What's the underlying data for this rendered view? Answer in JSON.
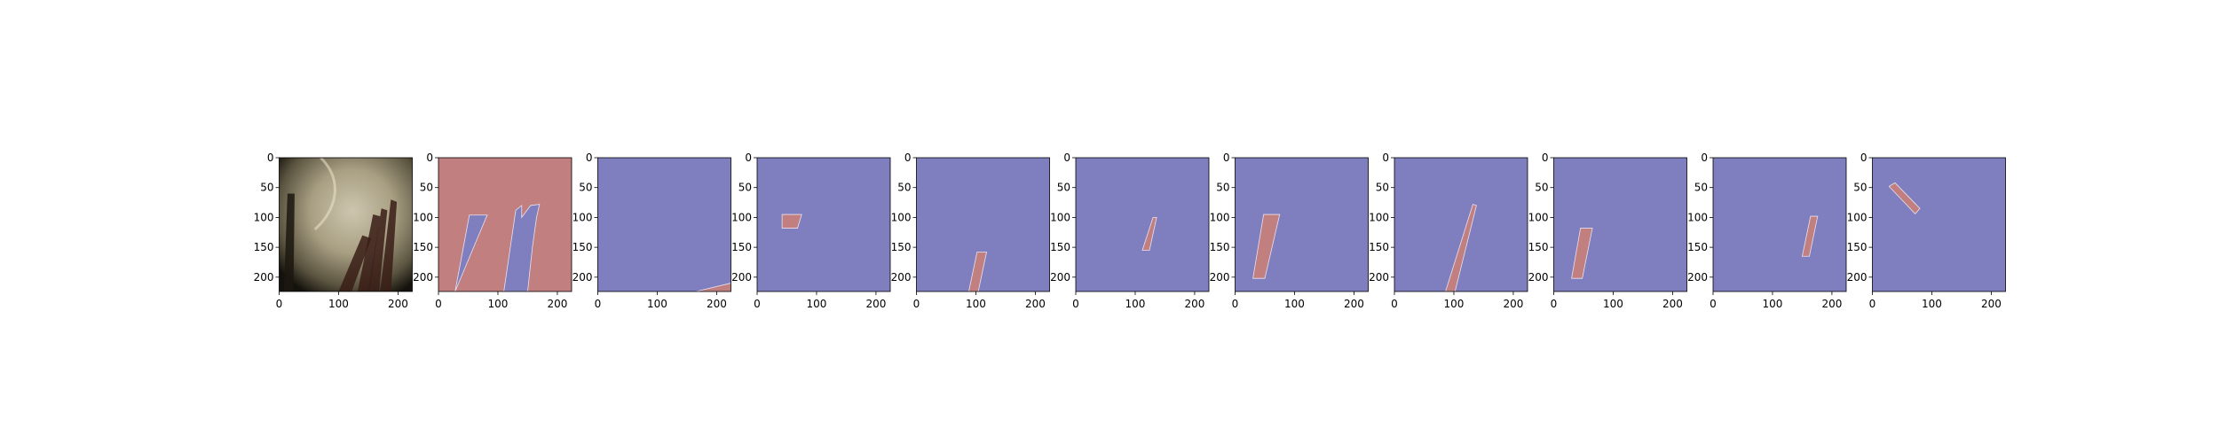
{
  "figure": {
    "background": "#ffffff",
    "panel_count": 11,
    "mask_colors": {
      "background": "#7f7fbf",
      "foreground": "#c27f7f"
    }
  },
  "chart_data": [
    {
      "type": "heatmap",
      "panel": 1,
      "content": "photo",
      "xlim": [
        0,
        224
      ],
      "ylim": [
        224,
        0
      ],
      "xticks": [
        0,
        100,
        200
      ],
      "yticks": [
        0,
        50,
        100,
        150,
        200
      ],
      "xtick_labels": [
        "0",
        "100",
        "200"
      ],
      "ytick_labels": [
        "0",
        "50",
        "100",
        "150",
        "200"
      ]
    },
    {
      "type": "heatmap",
      "panel": 2,
      "content": "mask",
      "background_class": "foreground",
      "regions": [
        [
          [
            28,
            225
          ],
          [
            52,
            96
          ],
          [
            82,
            96
          ],
          [
            60,
            148
          ],
          [
            28,
            225
          ]
        ],
        [
          [
            110,
            225
          ],
          [
            130,
            88
          ],
          [
            140,
            80
          ],
          [
            140,
            100
          ],
          [
            155,
            80
          ],
          [
            170,
            78
          ],
          [
            165,
            100
          ],
          [
            158,
            150
          ],
          [
            150,
            225
          ]
        ]
      ],
      "xlim": [
        0,
        224
      ],
      "ylim": [
        224,
        0
      ],
      "xticks": [
        0,
        100,
        200
      ],
      "yticks": [
        0,
        50,
        100,
        150,
        200
      ],
      "xtick_labels": [
        "0",
        "100",
        "200"
      ],
      "ytick_labels": [
        "0",
        "50",
        "100",
        "150",
        "200"
      ]
    },
    {
      "type": "heatmap",
      "panel": 3,
      "content": "mask",
      "regions": [
        [
          [
            165,
            225
          ],
          [
            224,
            210
          ],
          [
            224,
            225
          ]
        ]
      ],
      "xlim": [
        0,
        224
      ],
      "ylim": [
        224,
        0
      ],
      "xticks": [
        0,
        100,
        200
      ],
      "yticks": [
        0,
        50,
        100,
        150,
        200
      ],
      "xtick_labels": [
        "0",
        "100",
        "200"
      ],
      "ytick_labels": [
        "0",
        "50",
        "100",
        "150",
        "200"
      ]
    },
    {
      "type": "heatmap",
      "panel": 4,
      "content": "mask",
      "regions": [
        [
          [
            42,
            95
          ],
          [
            75,
            95
          ],
          [
            68,
            118
          ],
          [
            42,
            118
          ]
        ]
      ],
      "xlim": [
        0,
        224
      ],
      "ylim": [
        224,
        0
      ],
      "xticks": [
        0,
        100,
        200
      ],
      "yticks": [
        0,
        50,
        100,
        150,
        200
      ],
      "xtick_labels": [
        "0",
        "100",
        "200"
      ],
      "ytick_labels": [
        "0",
        "50",
        "100",
        "150",
        "200"
      ]
    },
    {
      "type": "heatmap",
      "panel": 5,
      "content": "mask",
      "regions": [
        [
          [
            88,
            225
          ],
          [
            102,
            158
          ],
          [
            118,
            158
          ],
          [
            104,
            225
          ]
        ]
      ],
      "xlim": [
        0,
        224
      ],
      "ylim": [
        224,
        0
      ],
      "xticks": [
        0,
        100,
        200
      ],
      "yticks": [
        0,
        50,
        100,
        150,
        200
      ],
      "xtick_labels": [
        "0",
        "100",
        "200"
      ],
      "ytick_labels": [
        "0",
        "50",
        "100",
        "150",
        "200"
      ]
    },
    {
      "type": "heatmap",
      "panel": 6,
      "content": "mask",
      "regions": [
        [
          [
            112,
            155
          ],
          [
            130,
            100
          ],
          [
            136,
            100
          ],
          [
            124,
            155
          ]
        ]
      ],
      "xlim": [
        0,
        224
      ],
      "ylim": [
        224,
        0
      ],
      "xticks": [
        0,
        100,
        200
      ],
      "yticks": [
        0,
        50,
        100,
        150,
        200
      ],
      "xtick_labels": [
        "0",
        "100",
        "200"
      ],
      "ytick_labels": [
        "0",
        "50",
        "100",
        "150",
        "200"
      ]
    },
    {
      "type": "heatmap",
      "panel": 7,
      "content": "mask",
      "regions": [
        [
          [
            30,
            202
          ],
          [
            48,
            95
          ],
          [
            75,
            95
          ],
          [
            50,
            202
          ]
        ]
      ],
      "xlim": [
        0,
        224
      ],
      "ylim": [
        224,
        0
      ],
      "xticks": [
        0,
        100,
        200
      ],
      "yticks": [
        0,
        50,
        100,
        150,
        200
      ],
      "xtick_labels": [
        "0",
        "100",
        "200"
      ],
      "ytick_labels": [
        "0",
        "50",
        "100",
        "150",
        "200"
      ]
    },
    {
      "type": "heatmap",
      "panel": 8,
      "content": "mask",
      "regions": [
        [
          [
            86,
            225
          ],
          [
            132,
            78
          ],
          [
            138,
            80
          ],
          [
            102,
            225
          ]
        ]
      ],
      "xlim": [
        0,
        224
      ],
      "ylim": [
        224,
        0
      ],
      "xticks": [
        0,
        100,
        200
      ],
      "yticks": [
        0,
        50,
        100,
        150,
        200
      ],
      "xtick_labels": [
        "0",
        "100",
        "200"
      ],
      "ytick_labels": [
        "0",
        "50",
        "100",
        "150",
        "200"
      ]
    },
    {
      "type": "heatmap",
      "panel": 9,
      "content": "mask",
      "regions": [
        [
          [
            30,
            202
          ],
          [
            45,
            118
          ],
          [
            65,
            118
          ],
          [
            48,
            202
          ]
        ]
      ],
      "xlim": [
        0,
        224
      ],
      "ylim": [
        224,
        0
      ],
      "xticks": [
        0,
        100,
        200
      ],
      "yticks": [
        0,
        50,
        100,
        150,
        200
      ],
      "xtick_labels": [
        "0",
        "100",
        "200"
      ],
      "ytick_labels": [
        "0",
        "50",
        "100",
        "150",
        "200"
      ]
    },
    {
      "type": "heatmap",
      "panel": 10,
      "content": "mask",
      "regions": [
        [
          [
            150,
            165
          ],
          [
            164,
            98
          ],
          [
            176,
            98
          ],
          [
            162,
            165
          ]
        ]
      ],
      "xlim": [
        0,
        224
      ],
      "ylim": [
        224,
        0
      ],
      "xticks": [
        0,
        100,
        200
      ],
      "yticks": [
        0,
        50,
        100,
        150,
        200
      ],
      "xtick_labels": [
        "0",
        "100",
        "200"
      ],
      "ytick_labels": [
        "0",
        "50",
        "100",
        "150",
        "200"
      ]
    },
    {
      "type": "heatmap",
      "panel": 11,
      "content": "mask",
      "regions": [
        [
          [
            28,
            48
          ],
          [
            38,
            42
          ],
          [
            80,
            85
          ],
          [
            72,
            94
          ]
        ]
      ],
      "xlim": [
        0,
        224
      ],
      "ylim": [
        224,
        0
      ],
      "xticks": [
        0,
        100,
        200
      ],
      "yticks": [
        0,
        50,
        100,
        150,
        200
      ],
      "xtick_labels": [
        "0",
        "100",
        "200"
      ],
      "ytick_labels": [
        "0",
        "50",
        "100",
        "150",
        "200"
      ]
    }
  ]
}
